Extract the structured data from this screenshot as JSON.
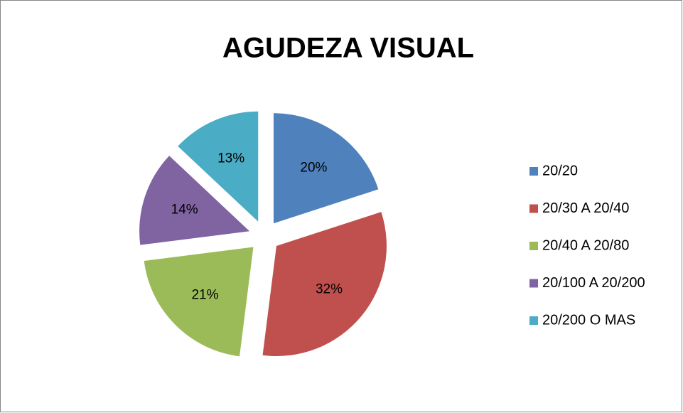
{
  "chart_data": {
    "type": "pie",
    "title": "AGUDEZA VISUAL",
    "categories": [
      "20/20",
      "20/30 A 20/40",
      "20/40 A 20/80",
      "20/100 A 20/200",
      "20/200 O MAS"
    ],
    "values": [
      20,
      32,
      21,
      14,
      13
    ],
    "value_labels": [
      "20%",
      "32%",
      "21%",
      "14%",
      "13%"
    ],
    "colors": [
      "#4f81bd",
      "#c0504d",
      "#9bbb59",
      "#8064a2",
      "#4bacc6"
    ],
    "legend": "right"
  }
}
